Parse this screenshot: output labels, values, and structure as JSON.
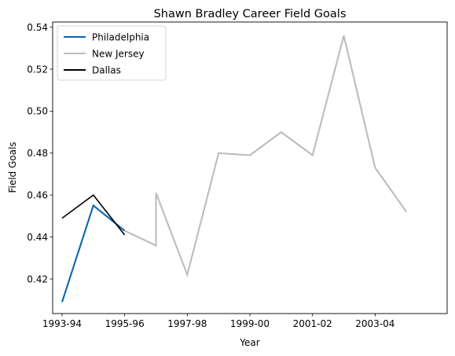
{
  "chart_data": {
    "type": "line",
    "title": "Shawn Bradley Career Field Goals",
    "xlabel": "Year",
    "ylabel": "Field Goals",
    "x_ticks": [
      "1993-94",
      "1995-96",
      "1997-98",
      "1999-00",
      "2001-02",
      "2003-04"
    ],
    "y_ticks": [
      "0.42",
      "0.44",
      "0.46",
      "0.48",
      "0.50",
      "0.52",
      "0.54"
    ],
    "xlim": [
      1992.7,
      2005.3
    ],
    "ylim": [
      0.4035,
      0.5425
    ],
    "grid": false,
    "legend": "top-left",
    "series": [
      {
        "name": "Philadelphia",
        "color": "#0868ac",
        "x": [
          1993,
          1994,
          1995
        ],
        "y": [
          0.409,
          0.455,
          0.443
        ]
      },
      {
        "name": "New Jersey",
        "color": "#bdbdbd",
        "x": [
          1995,
          1996,
          1996,
          1997,
          1998,
          1999,
          2000,
          2001,
          2002,
          2003,
          2004
        ],
        "y": [
          0.443,
          0.436,
          0.461,
          0.422,
          0.48,
          0.479,
          0.49,
          0.479,
          0.536,
          0.473,
          0.452
        ]
      },
      {
        "name": "Dallas",
        "color": "#000000",
        "x": [
          1993,
          1994,
          1995
        ],
        "y": [
          0.449,
          0.46,
          0.441
        ]
      }
    ]
  }
}
